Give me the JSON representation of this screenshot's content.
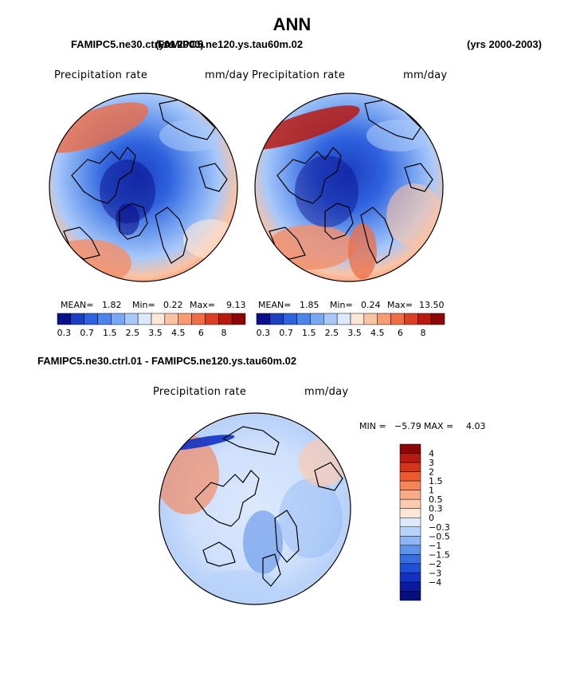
{
  "title": "ANN",
  "header": {
    "left_case": "FAMIPC5.ne30.ctrl.01",
    "overlap_years": "(yrs 2000)",
    "right_case": "FAMIPC5.ne120.ys.tau60m.02",
    "years": "(yrs 2000-2003)"
  },
  "panels": [
    {
      "field": "Precipitation rate",
      "units": "mm/day",
      "mean_label": "MEAN=",
      "mean": "1.82",
      "min_label": "Min=",
      "min": "0.22",
      "max_label": "Max=",
      "max": "9.13"
    },
    {
      "field": "Precipitation rate",
      "units": "mm/day",
      "mean_label": "MEAN=",
      "mean": "1.85",
      "min_label": "Min=",
      "min": "0.24",
      "max_label": "Max=",
      "max": "13.50"
    }
  ],
  "diff": {
    "title": "FAMIPC5.ne30.ctrl.01 - FAMIPC5.ne120.ys.tau60m.02",
    "field": "Precipitation rate",
    "units": "mm/day",
    "min_label": "MIN =",
    "min": "−5.79",
    "max_label": "MAX =",
    "max": "4.03"
  },
  "colorbar_abs": {
    "colors": [
      "#0a0f8a",
      "#1c3fc2",
      "#2f62de",
      "#4a84ec",
      "#78a8f4",
      "#a8c8fa",
      "#dce9fd",
      "#fde6d6",
      "#fbc3a4",
      "#f69b74",
      "#ee6d45",
      "#dc4024",
      "#b81a10",
      "#8a0706"
    ],
    "tick_labels": [
      "0.3",
      "0.7",
      "1.5",
      "2.5",
      "3.5",
      "4.5",
      "6",
      "8"
    ]
  },
  "colorbar_diff": {
    "colors": [
      "#8a0706",
      "#b81a10",
      "#d63418",
      "#ee5a30",
      "#f6855a",
      "#f9aa86",
      "#fbcbb0",
      "#fde6d6",
      "#dce9fd",
      "#b8d2fa",
      "#8fb6f4",
      "#5f92ea",
      "#3a6ee0",
      "#1f4fd6",
      "#1232c4",
      "#0a1aa0",
      "#06107a"
    ],
    "labels": [
      "4",
      "3",
      "2",
      "1.5",
      "1",
      "0.5",
      "0.3",
      "0",
      "−0.3",
      "−0.5",
      "−1",
      "−1.5",
      "−2",
      "−3",
      "−4"
    ]
  }
}
